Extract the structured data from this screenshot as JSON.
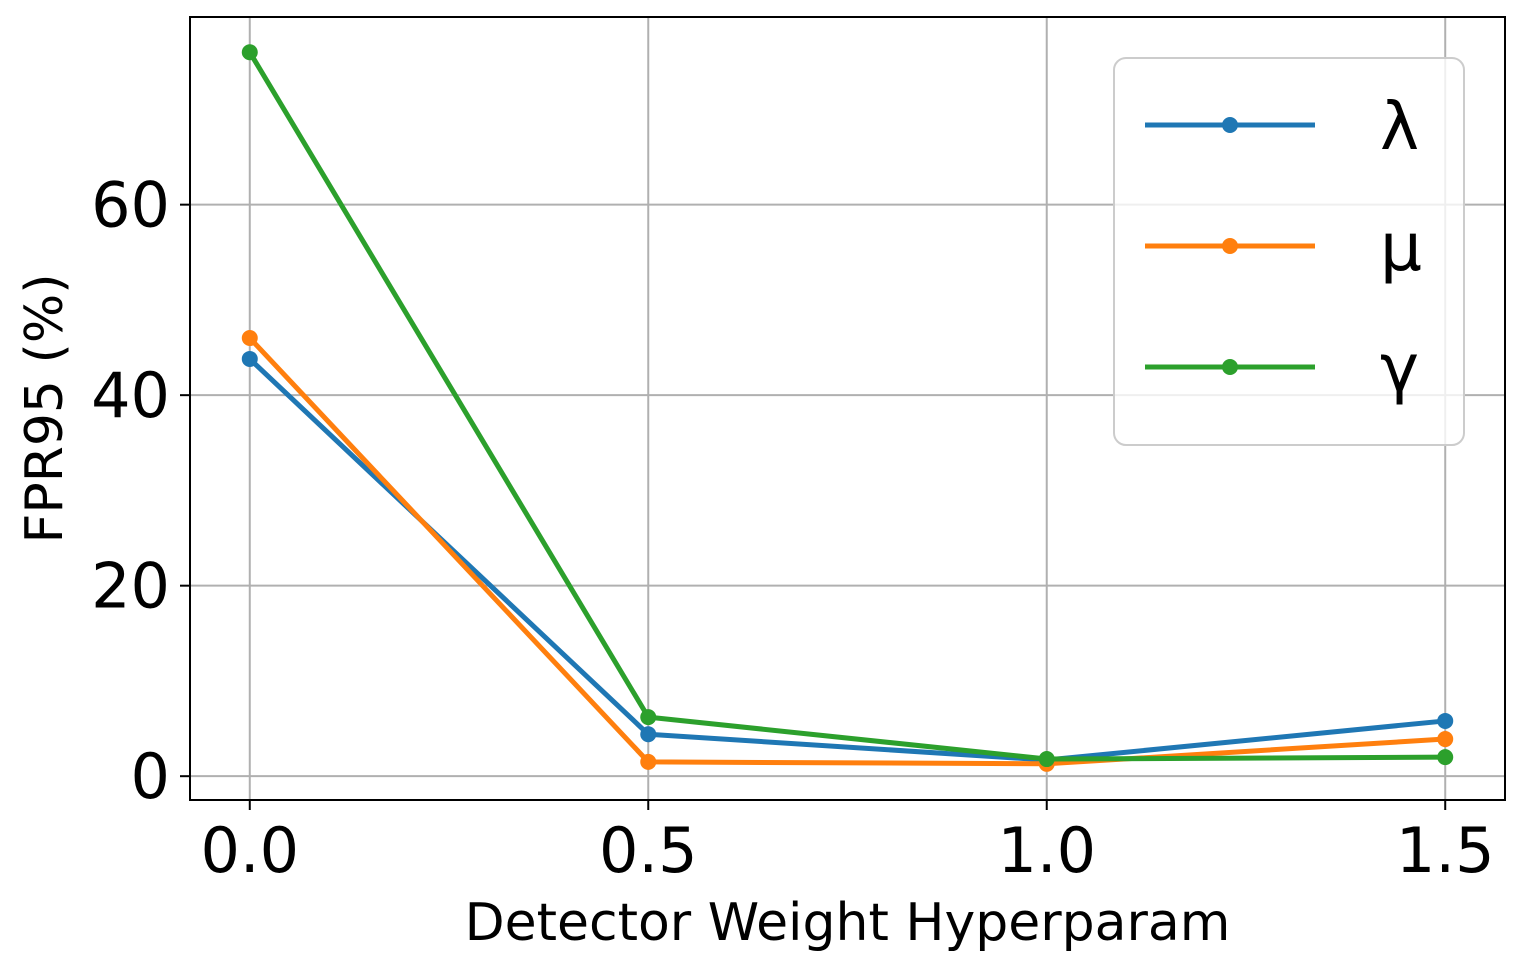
{
  "chart_data": {
    "type": "line",
    "title": "",
    "xlabel": "Detector Weight Hyperparam",
    "ylabel": "FPR95 (%)",
    "x": [
      0.0,
      0.5,
      1.0,
      1.5
    ],
    "x_tick_labels": [
      "0.0",
      "0.5",
      "1.0",
      "1.5"
    ],
    "y_ticks": [
      0,
      20,
      40,
      60
    ],
    "y_tick_labels": [
      "0",
      "20",
      "40",
      "60"
    ],
    "xlim": [
      -0.075,
      1.575
    ],
    "ylim": [
      -2.5,
      79.7
    ],
    "grid": true,
    "legend_position": "top-right",
    "series": [
      {
        "name": "λ",
        "color": "#1f77b4",
        "values": [
          43.8,
          4.4,
          1.7,
          5.8
        ]
      },
      {
        "name": "μ",
        "color": "#ff7f0e",
        "values": [
          46.0,
          1.5,
          1.3,
          3.9
        ]
      },
      {
        "name": "γ",
        "color": "#2ca02c",
        "values": [
          76.0,
          6.2,
          1.8,
          2.0
        ]
      }
    ]
  }
}
